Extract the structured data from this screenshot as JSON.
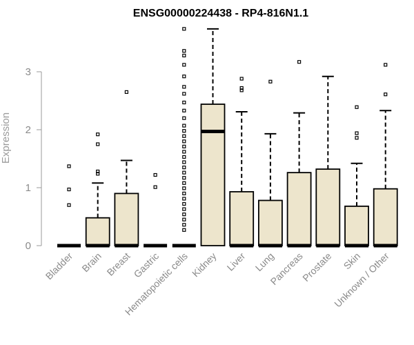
{
  "chart_data": {
    "type": "boxplot",
    "title": "ENSG00000224438 - RP4-816N1.1",
    "ylabel": "Expression",
    "xlabel": "",
    "ylim": [
      0,
      3.8
    ],
    "yticks": [
      0,
      1,
      2,
      3
    ],
    "categories": [
      "Bladder",
      "Brain",
      "Breast",
      "Gastric",
      "Hematopoietic cells",
      "Kidney",
      "Liver",
      "Lung",
      "Pancreas",
      "Prostate",
      "Skin",
      "Unknown / Other"
    ],
    "boxes": [
      {
        "q1": 0,
        "median": 0,
        "q3": 0,
        "whisker_low": 0,
        "whisker_high": 0,
        "outliers": [
          0.7,
          0.97,
          1.37
        ]
      },
      {
        "q1": 0,
        "median": 0,
        "q3": 0.48,
        "whisker_low": 0,
        "whisker_high": 1.08,
        "outliers": [
          1.24,
          1.28,
          1.75,
          1.92
        ]
      },
      {
        "q1": 0,
        "median": 0,
        "q3": 0.9,
        "whisker_low": 0,
        "whisker_high": 1.47,
        "outliers": [
          2.65
        ]
      },
      {
        "q1": 0,
        "median": 0,
        "q3": 0,
        "whisker_low": 0,
        "whisker_high": 0,
        "outliers": [
          1.01,
          1.22
        ]
      },
      {
        "q1": 0,
        "median": 0,
        "q3": 0,
        "whisker_low": 0,
        "whisker_high": 0,
        "outliers": [
          0.27,
          0.36,
          0.45,
          0.54,
          0.63,
          0.72,
          0.81,
          0.9,
          0.99,
          1.08,
          1.17,
          1.26,
          1.35,
          1.44,
          1.53,
          1.62,
          1.71,
          1.8,
          1.89,
          1.98,
          2.07,
          2.2,
          2.33,
          2.47,
          2.62,
          2.74,
          2.92,
          3.12,
          3.28,
          3.36,
          3.74
        ]
      },
      {
        "q1": 0,
        "median": 1.97,
        "q3": 2.44,
        "whisker_low": 0,
        "whisker_high": 3.74,
        "outliers": []
      },
      {
        "q1": 0,
        "median": 0,
        "q3": 0.93,
        "whisker_low": 0,
        "whisker_high": 2.31,
        "outliers": [
          2.68,
          2.72,
          2.88
        ]
      },
      {
        "q1": 0,
        "median": 0,
        "q3": 0.78,
        "whisker_low": 0,
        "whisker_high": 1.93,
        "outliers": [
          2.83
        ]
      },
      {
        "q1": 0,
        "median": 0,
        "q3": 1.26,
        "whisker_low": 0,
        "whisker_high": 2.29,
        "outliers": [
          3.17
        ]
      },
      {
        "q1": 0,
        "median": 0,
        "q3": 1.32,
        "whisker_low": 0,
        "whisker_high": 2.92,
        "outliers": []
      },
      {
        "q1": 0,
        "median": 0,
        "q3": 0.68,
        "whisker_low": 0,
        "whisker_high": 1.42,
        "outliers": [
          1.86,
          1.94,
          2.39
        ]
      },
      {
        "q1": 0,
        "median": 0,
        "q3": 0.98,
        "whisker_low": 0,
        "whisker_high": 2.33,
        "outliers": [
          2.61,
          3.12
        ]
      }
    ],
    "colors": {
      "box_fill": "#ede5cc",
      "box_stroke": "#000000",
      "axis": "#9a9a9a",
      "tick_label": "#8a8a8a",
      "title": "#000000"
    }
  }
}
